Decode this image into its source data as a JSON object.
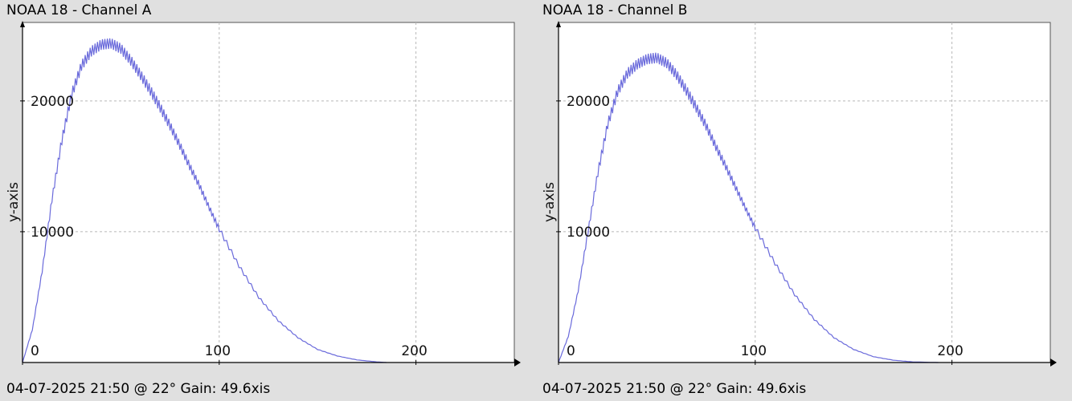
{
  "panels": [
    {
      "title": "NOAA 18 - Channel A",
      "footer": "04-07-2025 21:50 @ 22° Gain: 49.6",
      "footer_suffix": "xis"
    },
    {
      "title": "NOAA 18 - Channel B",
      "footer": "04-07-2025 21:50 @ 22° Gain: 49.6",
      "footer_suffix": "xis"
    }
  ],
  "colors": {
    "background": "#e0e0e0",
    "plot_area": "#ffffff",
    "line": "#6a6adb",
    "grid": "#b8b8b8",
    "axis": "#000000"
  },
  "chart_data": [
    {
      "type": "line",
      "title": "NOAA 18 - Channel A",
      "ylabel": "y-axis",
      "xlabel": "",
      "xlim": [
        0,
        250
      ],
      "ylim": [
        0,
        26000
      ],
      "x_ticks": [
        0,
        100,
        200
      ],
      "y_ticks": [
        10000,
        20000
      ],
      "grid": true,
      "series": [
        {
          "x": [
            0,
            5,
            10,
            15,
            20,
            25,
            30,
            35,
            40,
            45,
            50,
            55,
            60,
            65,
            70,
            75,
            80,
            85,
            90,
            95,
            100,
            110,
            120,
            130,
            140,
            150,
            160,
            170,
            180,
            185
          ],
          "values": [
            0,
            2500,
            7000,
            12500,
            17000,
            20500,
            22700,
            23800,
            24300,
            24400,
            24000,
            23100,
            22000,
            20800,
            19500,
            18100,
            16600,
            15000,
            13500,
            11800,
            10200,
            7400,
            5000,
            3200,
            1900,
            1000,
            500,
            200,
            50,
            0
          ]
        }
      ]
    },
    {
      "type": "line",
      "title": "NOAA 18 - Channel B",
      "ylabel": "y-axis",
      "xlabel": "",
      "xlim": [
        0,
        250
      ],
      "ylim": [
        0,
        26000
      ],
      "x_ticks": [
        0,
        100,
        200
      ],
      "y_ticks": [
        10000,
        20000
      ],
      "grid": true,
      "series": [
        {
          "x": [
            0,
            5,
            10,
            15,
            20,
            25,
            30,
            35,
            40,
            45,
            50,
            55,
            60,
            65,
            70,
            75,
            80,
            85,
            90,
            95,
            100,
            110,
            120,
            130,
            140,
            150,
            160,
            170,
            180,
            190,
            193
          ],
          "values": [
            0,
            2000,
            5500,
            10000,
            14500,
            18200,
            20700,
            22100,
            22800,
            23200,
            23300,
            22900,
            22000,
            20800,
            19500,
            18100,
            16500,
            15000,
            13400,
            11800,
            10300,
            7600,
            5200,
            3300,
            1900,
            1000,
            450,
            180,
            50,
            10,
            0
          ]
        }
      ]
    }
  ]
}
